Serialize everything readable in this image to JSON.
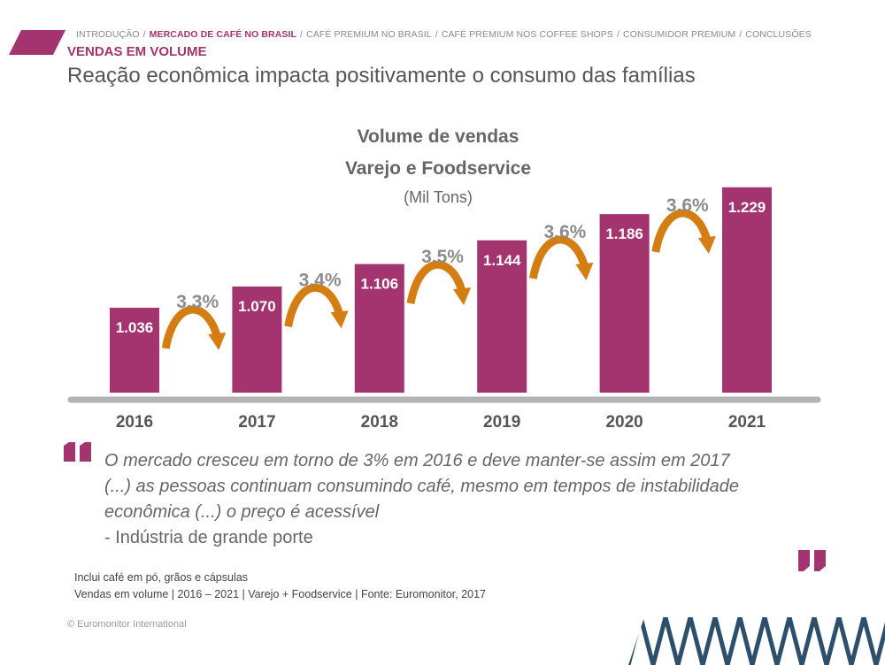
{
  "header": {
    "breadcrumb": [
      {
        "label": "INTRODUÇÃO",
        "active": false
      },
      {
        "label": "MERCADO DE CAFÉ NO BRASIL",
        "active": true
      },
      {
        "label": "CAFÉ PREMIUM NO BRASIL",
        "active": false
      },
      {
        "label": "CAFÉ PREMIUM NOS COFFEE SHOPS",
        "active": false
      },
      {
        "label": "CONSUMIDOR PREMIUM",
        "active": false
      },
      {
        "label": "CONCLUSÕES",
        "active": false
      }
    ],
    "breadcrumb_separator": "/",
    "section_label": "VENDAS EM VOLUME",
    "headline": "Reação econômica impacta positivamente o consumo das famílias"
  },
  "chart_data": {
    "type": "bar",
    "title": "Volume  de vendas",
    "subtitle": "Varejo e Foodservice",
    "unit": "(Mil Tons)",
    "categories": [
      "2016",
      "2017",
      "2018",
      "2019",
      "2020",
      "2021"
    ],
    "values": [
      1.036,
      1.07,
      1.106,
      1.144,
      1.186,
      1.229
    ],
    "value_labels": [
      "1.036",
      "1.070",
      "1.106",
      "1.144",
      "1.186",
      "1.229"
    ],
    "growth_labels": [
      "3.3%",
      "3.4%",
      "3.5%",
      "3.6%",
      "3.6%"
    ],
    "ylim": [
      0.9,
      1.24
    ],
    "grid": false,
    "legend": "none"
  },
  "quote": {
    "lines": [
      "O mercado cresceu em torno de 3% em 2016 e deve manter-se assim em 2017",
      "(...) as pessoas continuam consumindo café, mesmo em tempos de instabilidade",
      "econômica (...) o preço é acessível"
    ],
    "source": "- Indústria de grande porte"
  },
  "footnote": {
    "line1": "Inclui café em pó, grãos e cápsulas",
    "line2": "Vendas em volume | 2016 – 2021 | Varejo + Foodservice | Fonte: Euromonitor, 2017"
  },
  "copyright": "© Euromonitor International",
  "colors": {
    "accent": "#a3346f",
    "arrow": "#d47d12",
    "axis": "#b3b3b3",
    "growth_text": "#8c8c8c",
    "pattern": "#2c4f6b"
  }
}
